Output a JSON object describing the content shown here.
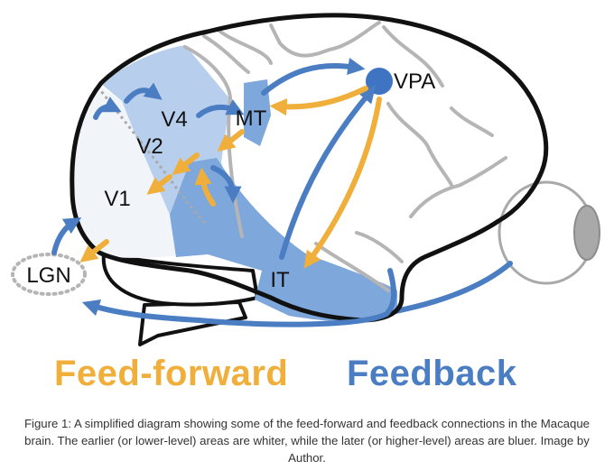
{
  "colors": {
    "feedforward": "#F0AE3A",
    "feedback": "#4A7DC2",
    "high_level_area": "#7EA7DB",
    "mid_level_area": "#B7CFEC",
    "low_level_area": "#F1F5FA",
    "sulci": "#B5B5B5",
    "outline": "#111111"
  },
  "diagram": {
    "labels": {
      "lgn": "LGN",
      "v1": "V1",
      "v2": "V2",
      "v4": "V4",
      "mt": "MT",
      "vpa": "VPA",
      "it": "IT"
    }
  },
  "legend": {
    "feedforward": "Feed-forward",
    "feedback": "Feedback"
  },
  "caption": "Figure 1: A simplified diagram showing some of the feed-forward and feedback connections in the Macaque brain. The earlier (or lower-level) areas are whiter, while the later (or higher-level) areas are bluer. Image by Author."
}
